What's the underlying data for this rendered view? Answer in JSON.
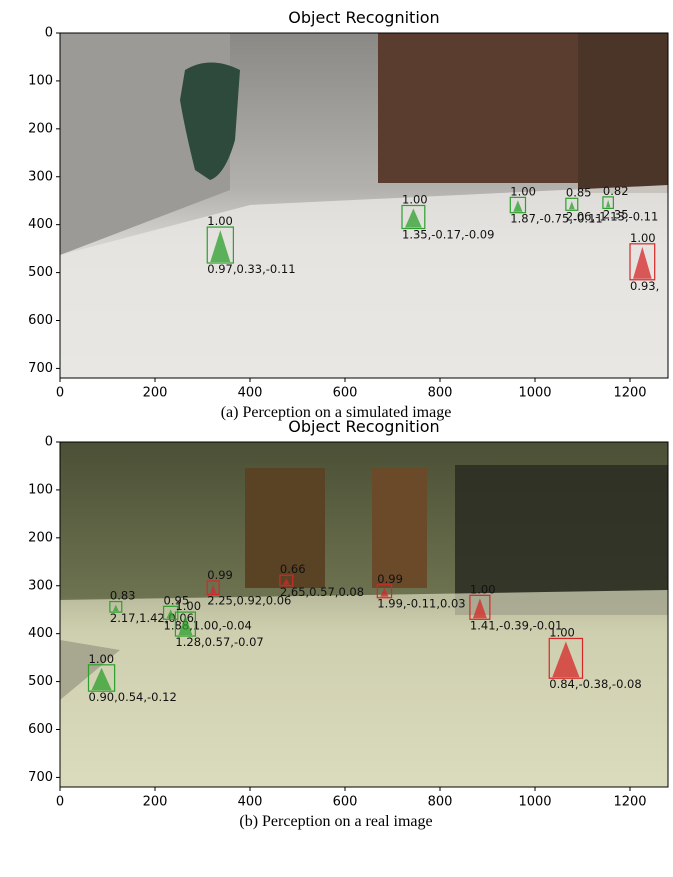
{
  "panels": [
    {
      "title": "Object Recognition",
      "caption": "(a) Perception on a simulated image",
      "xlim": [
        0,
        1280
      ],
      "ylim": [
        720,
        0
      ],
      "xticks": [
        0,
        200,
        400,
        600,
        800,
        1000,
        1200
      ],
      "yticks": [
        0,
        100,
        200,
        300,
        400,
        500,
        600,
        700
      ],
      "detections": [
        {
          "color": "#2ca02c",
          "x": [
            310,
            365
          ],
          "y": [
            405,
            480
          ],
          "score": "1.00",
          "pose": "0.97,0.33,-0.11"
        },
        {
          "color": "#2ca02c",
          "x": [
            720,
            768
          ],
          "y": [
            360,
            408
          ],
          "score": "1.00",
          "pose": "1.35,-0.17,-0.09"
        },
        {
          "color": "#2ca02c",
          "x": [
            948,
            980
          ],
          "y": [
            343,
            375
          ],
          "score": "1.00",
          "pose": "1.87,-0.75,-0.11"
        },
        {
          "color": "#2ca02c",
          "x": [
            1065,
            1090
          ],
          "y": [
            345,
            370
          ],
          "score": "0.85",
          "pose": "2.06,-1.13,-0.11"
        },
        {
          "color": "#2ca02c",
          "x": [
            1143,
            1165
          ],
          "y": [
            342,
            366
          ],
          "score": "0.82",
          "pose": "2.35"
        },
        {
          "color": "#d62728",
          "x": [
            1200,
            1252
          ],
          "y": [
            440,
            515
          ],
          "score": "1.00",
          "pose": "0.93,"
        }
      ]
    },
    {
      "title": "Object Recognition",
      "caption": "(b) Perception on a real image",
      "xlim": [
        0,
        1280
      ],
      "ylim": [
        720,
        0
      ],
      "xticks": [
        0,
        200,
        400,
        600,
        800,
        1000,
        1200
      ],
      "yticks": [
        0,
        100,
        200,
        300,
        400,
        500,
        600,
        700
      ],
      "detections": [
        {
          "color": "#2ca02c",
          "x": [
            60,
            115
          ],
          "y": [
            465,
            520
          ],
          "score": "1.00",
          "pose": "0.90,0.54,-0.12"
        },
        {
          "color": "#2ca02c",
          "x": [
            105,
            130
          ],
          "y": [
            333,
            355
          ],
          "score": "0.83",
          "pose": "2.17,1.42,0.06"
        },
        {
          "color": "#2ca02c",
          "x": [
            218,
            248
          ],
          "y": [
            343,
            370
          ],
          "score": "0.95",
          "pose": "1.88,1.00,-0.04"
        },
        {
          "color": "#2ca02c",
          "x": [
            243,
            285
          ],
          "y": [
            355,
            405
          ],
          "score": "1.00",
          "pose": "1.28,0.57,-0.07"
        },
        {
          "color": "#d62728",
          "x": [
            310,
            335
          ],
          "y": [
            290,
            318
          ],
          "score": "0.99",
          "pose": "2.25,0.92,0.06"
        },
        {
          "color": "#d62728",
          "x": [
            463,
            490
          ],
          "y": [
            278,
            300
          ],
          "score": "0.66",
          "pose": "2.65,0.57,0.08"
        },
        {
          "color": "#d62728",
          "x": [
            668,
            698
          ],
          "y": [
            298,
            325
          ],
          "score": "0.99",
          "pose": "1.99,-0.11,0.03"
        },
        {
          "color": "#d62728",
          "x": [
            863,
            905
          ],
          "y": [
            320,
            370
          ],
          "score": "1.00",
          "pose": "1.41,-0.39,-0.01"
        },
        {
          "color": "#d62728",
          "x": [
            1030,
            1100
          ],
          "y": [
            410,
            493
          ],
          "score": "1.00",
          "pose": "0.84,-0.38,-0.08"
        }
      ]
    }
  ]
}
